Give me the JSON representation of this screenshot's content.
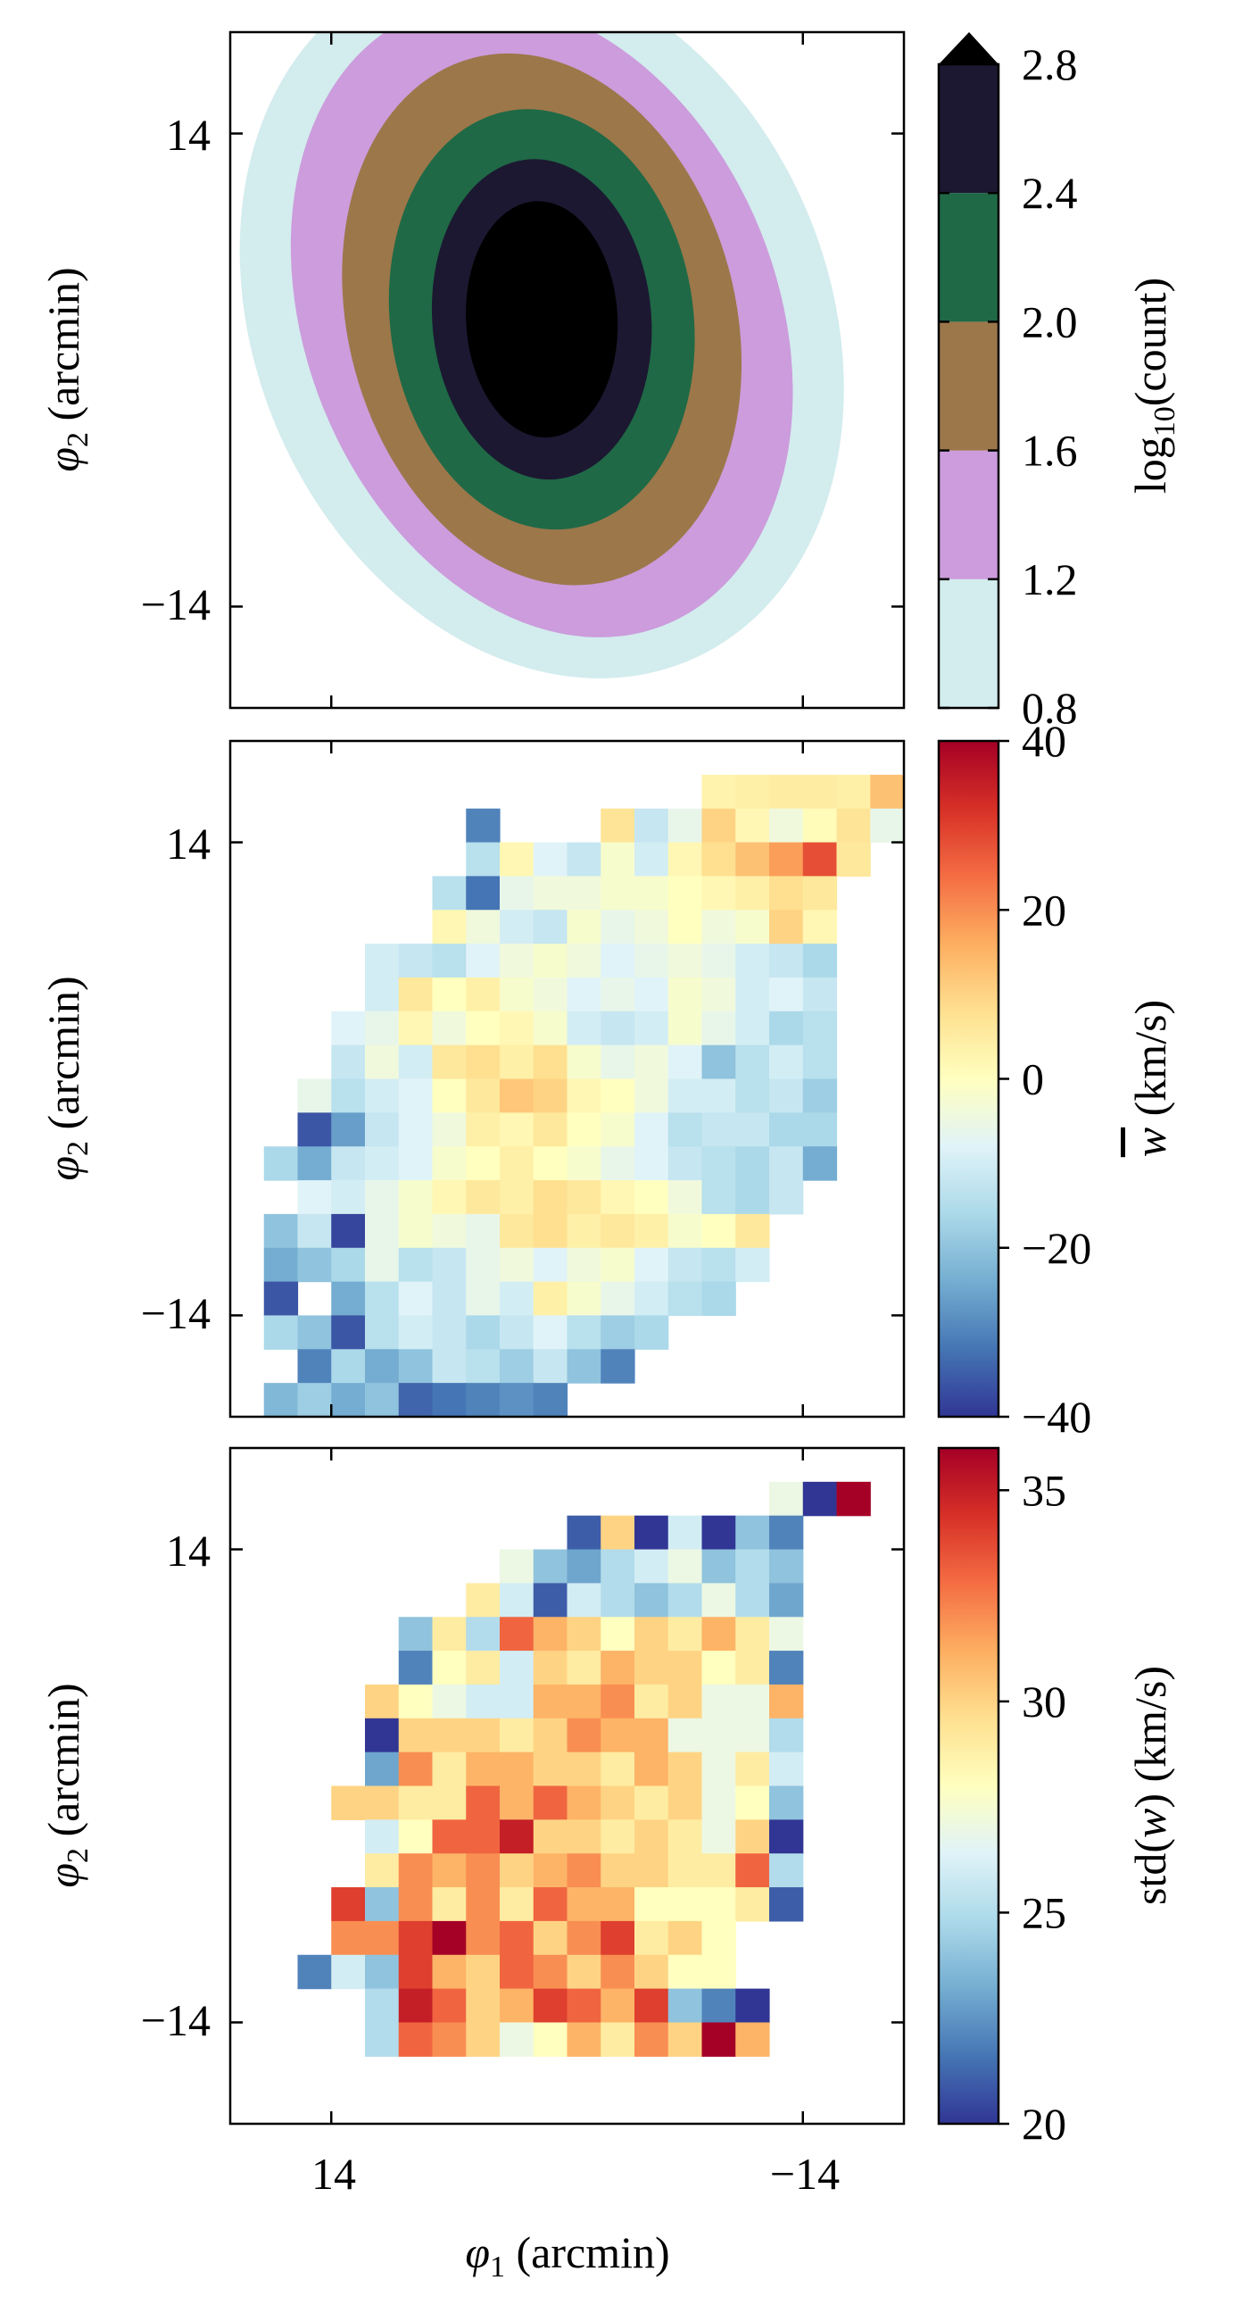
{
  "chart_data": [
    {
      "type": "contour",
      "panel": "top",
      "xlabel": "",
      "ylabel": "φ2 (arcmin)",
      "ylabel_main": "φ",
      "ylabel_sub": "2",
      "ylabel_rest": " (arcmin)",
      "xlim": [
        20,
        -20
      ],
      "ylim": [
        -20,
        20
      ],
      "xticks": [
        14,
        -14
      ],
      "yticks": [
        14,
        -14
      ],
      "ytick_labels": [
        "14",
        "−14"
      ],
      "levels": [
        0.8,
        1.2,
        1.6,
        2.0,
        2.4,
        2.8
      ],
      "level_labels": [
        "0.8",
        "1.2",
        "1.6",
        "2.0",
        "2.4",
        "2.8"
      ],
      "level_colors": [
        "#d3ecee",
        "#cc9cdc",
        "#9c774a",
        "#1f6946",
        "#1c1831",
        "#000000"
      ],
      "colorbar_label": "log10(count)",
      "colorbar_label_main": "log",
      "colorbar_label_sub": "10",
      "colorbar_label_rest": "(count)",
      "colorbar_extend": "max",
      "center": [
        1.5,
        3
      ],
      "contours": [
        {
          "level": 0.8,
          "semi_axis_x": 17,
          "semi_axis_y": 22,
          "tilt_deg": 24
        },
        {
          "level": 1.2,
          "semi_axis_x": 14,
          "semi_axis_y": 19.5,
          "tilt_deg": 22
        },
        {
          "level": 1.6,
          "semi_axis_x": 11.5,
          "semi_axis_y": 16,
          "tilt_deg": 15
        },
        {
          "level": 2.0,
          "semi_axis_x": 9,
          "semi_axis_y": 12.5,
          "tilt_deg": 8
        },
        {
          "level": 2.4,
          "semi_axis_x": 6.5,
          "semi_axis_y": 9.5,
          "tilt_deg": 5
        },
        {
          "level": 2.8,
          "semi_axis_x": 4.5,
          "semi_axis_y": 7,
          "tilt_deg": 3
        }
      ]
    },
    {
      "type": "heatmap",
      "panel": "middle",
      "xlabel": "",
      "ylabel": "φ2 (arcmin)",
      "ylabel_main": "φ",
      "ylabel_sub": "2",
      "ylabel_rest": " (arcmin)",
      "xlim": [
        20,
        -20
      ],
      "ylim": [
        -20,
        20
      ],
      "xticks": [
        14,
        -14
      ],
      "yticks": [
        14,
        -14
      ],
      "ytick_labels": [
        "14",
        "−14"
      ],
      "bin_size_arcmin": 2,
      "n_cols": 20,
      "n_rows": 20,
      "value_description": "mean w per bin (km/s), row 0 = top (phi2 = +20), col 0 = left (phi1 = +20), null = empty bin",
      "colormap": "RdYlBu_r",
      "vmin": -40,
      "vmax": 40,
      "colorbar_ticks": [
        40,
        20,
        0,
        -20,
        -40
      ],
      "colorbar_tick_labels": [
        "40",
        "20",
        "0",
        "−20",
        "−40"
      ],
      "colorbar_label": "w̄ (km/s)",
      "colorbar_label_main": "w",
      "colorbar_label_rest": " (km/s)",
      "values": [
        [
          null,
          null,
          null,
          null,
          null,
          null,
          null,
          null,
          null,
          null,
          null,
          null,
          null,
          null,
          null,
          null,
          null,
          null,
          null,
          null
        ],
        [
          null,
          null,
          null,
          null,
          null,
          null,
          null,
          null,
          null,
          null,
          null,
          null,
          null,
          null,
          3,
          4,
          5,
          5,
          4,
          13
        ],
        [
          null,
          null,
          null,
          null,
          null,
          null,
          null,
          -30,
          null,
          null,
          null,
          7,
          -12,
          -6,
          10,
          2,
          -4,
          1,
          7,
          -6
        ],
        [
          null,
          null,
          null,
          null,
          null,
          null,
          null,
          -14,
          2,
          -8,
          -12,
          -2,
          -10,
          2,
          8,
          13,
          18,
          28,
          6,
          null
        ],
        [
          null,
          null,
          null,
          null,
          null,
          null,
          -14,
          -32,
          -6,
          -4,
          -4,
          -2,
          -2,
          0,
          2,
          4,
          8,
          6,
          null,
          null
        ],
        [
          null,
          null,
          null,
          null,
          null,
          null,
          2,
          -4,
          -10,
          -12,
          -2,
          -6,
          -4,
          0,
          -4,
          -2,
          10,
          2,
          null,
          null
        ],
        [
          null,
          null,
          null,
          null,
          -10,
          -12,
          -14,
          -8,
          -4,
          -2,
          -4,
          -8,
          -6,
          -4,
          -6,
          -10,
          -12,
          -16,
          null,
          null
        ],
        [
          null,
          null,
          null,
          null,
          -10,
          6,
          0,
          4,
          -2,
          -4,
          -8,
          -6,
          -8,
          -2,
          -4,
          -10,
          -8,
          -12,
          null,
          null
        ],
        [
          null,
          null,
          null,
          -8,
          -6,
          2,
          -4,
          0,
          2,
          -2,
          -10,
          -12,
          -10,
          -2,
          -6,
          -10,
          -16,
          -14,
          null,
          null
        ],
        [
          null,
          null,
          null,
          -12,
          -4,
          -10,
          6,
          8,
          4,
          8,
          -2,
          -6,
          -4,
          -8,
          -20,
          -14,
          -10,
          -14,
          null,
          null
        ],
        [
          null,
          null,
          -6,
          -14,
          -10,
          -8,
          0,
          6,
          12,
          10,
          2,
          0,
          -4,
          -10,
          -10,
          -14,
          -12,
          -18,
          null,
          null
        ],
        [
          null,
          null,
          -36,
          -26,
          -12,
          -8,
          -4,
          4,
          2,
          6,
          0,
          -2,
          -8,
          -14,
          -12,
          -12,
          -16,
          -16,
          null,
          null
        ],
        [
          null,
          -16,
          -24,
          -12,
          -10,
          -8,
          -2,
          0,
          4,
          0,
          -2,
          -6,
          -8,
          -12,
          -14,
          -16,
          -12,
          -24,
          null,
          null
        ],
        [
          null,
          null,
          -8,
          -10,
          -6,
          -2,
          2,
          6,
          4,
          8,
          6,
          2,
          0,
          -4,
          -14,
          -16,
          -12,
          null,
          null,
          null
        ],
        [
          null,
          -20,
          -12,
          -38,
          -6,
          -2,
          -4,
          -6,
          6,
          8,
          4,
          6,
          4,
          -2,
          0,
          6,
          null,
          null,
          null,
          null
        ],
        [
          null,
          -24,
          -20,
          -16,
          -6,
          -14,
          -12,
          -6,
          -4,
          -8,
          -4,
          -2,
          -8,
          -12,
          -14,
          -10,
          null,
          null,
          null,
          null
        ],
        [
          null,
          -36,
          null,
          -24,
          -14,
          -8,
          -12,
          -6,
          -10,
          4,
          -2,
          -6,
          -10,
          -14,
          -16,
          null,
          null,
          null,
          null,
          null
        ],
        [
          null,
          -16,
          -20,
          -36,
          -14,
          -10,
          -12,
          -16,
          -12,
          -8,
          -14,
          -18,
          -16,
          null,
          null,
          null,
          null,
          null,
          null,
          null
        ],
        [
          null,
          null,
          -30,
          -16,
          -24,
          -20,
          -12,
          -14,
          -18,
          -12,
          -20,
          -30,
          null,
          null,
          null,
          null,
          null,
          null,
          null,
          null
        ],
        [
          null,
          -22,
          -18,
          -24,
          -20,
          -34,
          -32,
          -30,
          -28,
          -30,
          null,
          null,
          null,
          null,
          null,
          null,
          null,
          null,
          null,
          null
        ]
      ]
    },
    {
      "type": "heatmap",
      "panel": "bottom",
      "xlabel": "φ1 (arcmin)",
      "xlabel_main": "φ",
      "xlabel_sub": "1",
      "xlabel_rest": " (arcmin)",
      "ylabel": "φ2 (arcmin)",
      "ylabel_main": "φ",
      "ylabel_sub": "2",
      "ylabel_rest": " (arcmin)",
      "xlim": [
        20,
        -20
      ],
      "ylim": [
        -20,
        20
      ],
      "xticks": [
        14,
        -14
      ],
      "xtick_labels": [
        "14",
        "−14"
      ],
      "yticks": [
        14,
        -14
      ],
      "ytick_labels": [
        "14",
        "−14"
      ],
      "bin_size_arcmin": 2,
      "n_cols": 20,
      "n_rows": 20,
      "value_description": "std of w per bin (km/s), row 0 = top (phi2 = +20), col 0 = left (phi1 = +20), null = empty bin",
      "colormap": "RdYlBu_r",
      "vmin": 20,
      "vmax": 36,
      "colorbar_ticks": [
        35,
        30,
        25,
        20
      ],
      "colorbar_tick_labels": [
        "35",
        "30",
        "25",
        "20"
      ],
      "colorbar_label": "std(w) (km/s)",
      "colorbar_label_pre": "std(",
      "colorbar_label_var": "w",
      "colorbar_label_post": ") (km/s)",
      "values": [
        [
          null,
          null,
          null,
          null,
          null,
          null,
          null,
          null,
          null,
          null,
          null,
          null,
          null,
          null,
          null,
          null,
          null,
          null,
          null,
          null
        ],
        [
          null,
          null,
          null,
          null,
          null,
          null,
          null,
          null,
          null,
          null,
          null,
          null,
          null,
          null,
          null,
          null,
          27,
          20,
          36,
          null
        ],
        [
          null,
          null,
          null,
          null,
          null,
          null,
          null,
          null,
          null,
          null,
          21,
          30,
          20,
          26,
          20,
          24,
          22,
          null,
          null,
          null
        ],
        [
          null,
          null,
          null,
          null,
          null,
          null,
          null,
          null,
          27,
          24,
          23,
          25,
          26,
          27,
          24,
          25,
          24,
          null,
          null,
          null
        ],
        [
          null,
          null,
          null,
          null,
          null,
          null,
          null,
          29,
          26,
          21,
          26,
          25,
          24,
          25,
          27,
          25,
          23,
          null,
          null,
          null
        ],
        [
          null,
          null,
          null,
          null,
          null,
          24,
          29,
          25,
          33,
          31,
          30,
          28,
          30,
          29,
          31,
          29,
          27,
          null,
          null,
          null
        ],
        [
          null,
          null,
          null,
          null,
          null,
          22,
          28,
          29,
          26,
          30,
          29,
          31,
          30,
          30,
          28,
          29,
          22,
          null,
          null,
          null
        ],
        [
          null,
          null,
          null,
          null,
          30,
          28,
          27,
          26,
          26,
          31,
          31,
          32,
          29,
          30,
          27,
          27,
          31,
          null,
          null,
          null
        ],
        [
          null,
          null,
          null,
          null,
          20,
          30,
          30,
          30,
          29,
          30,
          32,
          31,
          31,
          27,
          27,
          27,
          25,
          null,
          null,
          null
        ],
        [
          null,
          null,
          null,
          null,
          23,
          32,
          29,
          31,
          31,
          30,
          30,
          29,
          31,
          30,
          27,
          29,
          26,
          null,
          null,
          null
        ],
        [
          null,
          null,
          null,
          30,
          30,
          29,
          29,
          33,
          31,
          33,
          31,
          30,
          29,
          30,
          27,
          28,
          24,
          null,
          null,
          null
        ],
        [
          null,
          null,
          null,
          null,
          26,
          28,
          33,
          33,
          35,
          30,
          30,
          29,
          30,
          29,
          27,
          30,
          20,
          null,
          null,
          null
        ],
        [
          null,
          null,
          null,
          null,
          29,
          32,
          31,
          32,
          30,
          31,
          32,
          30,
          30,
          29,
          29,
          33,
          25,
          null,
          null,
          null
        ],
        [
          null,
          null,
          null,
          34,
          24,
          32,
          29,
          32,
          29,
          33,
          31,
          31,
          28,
          28,
          28,
          29,
          21,
          null,
          null,
          null
        ],
        [
          null,
          null,
          null,
          32,
          32,
          34,
          36,
          32,
          33,
          30,
          32,
          34,
          29,
          30,
          28,
          null,
          null,
          null,
          null,
          null
        ],
        [
          null,
          null,
          22,
          26,
          24,
          34,
          31,
          30,
          33,
          32,
          30,
          32,
          30,
          28,
          28,
          null,
          null,
          null,
          null,
          null
        ],
        [
          null,
          null,
          null,
          null,
          25,
          35,
          33,
          30,
          31,
          34,
          33,
          31,
          34,
          24,
          22,
          20,
          null,
          null,
          null,
          null
        ],
        [
          null,
          null,
          null,
          null,
          25,
          33,
          32,
          30,
          27,
          28,
          31,
          29,
          32,
          30,
          36,
          31,
          null,
          null,
          null,
          null
        ],
        [
          null,
          null,
          null,
          null,
          null,
          null,
          null,
          null,
          null,
          null,
          null,
          null,
          null,
          null,
          null,
          null,
          null,
          null,
          null,
          null
        ],
        [
          null,
          null,
          null,
          null,
          null,
          null,
          null,
          null,
          null,
          null,
          null,
          null,
          null,
          null,
          null,
          null,
          null,
          null,
          null,
          null
        ]
      ]
    }
  ]
}
